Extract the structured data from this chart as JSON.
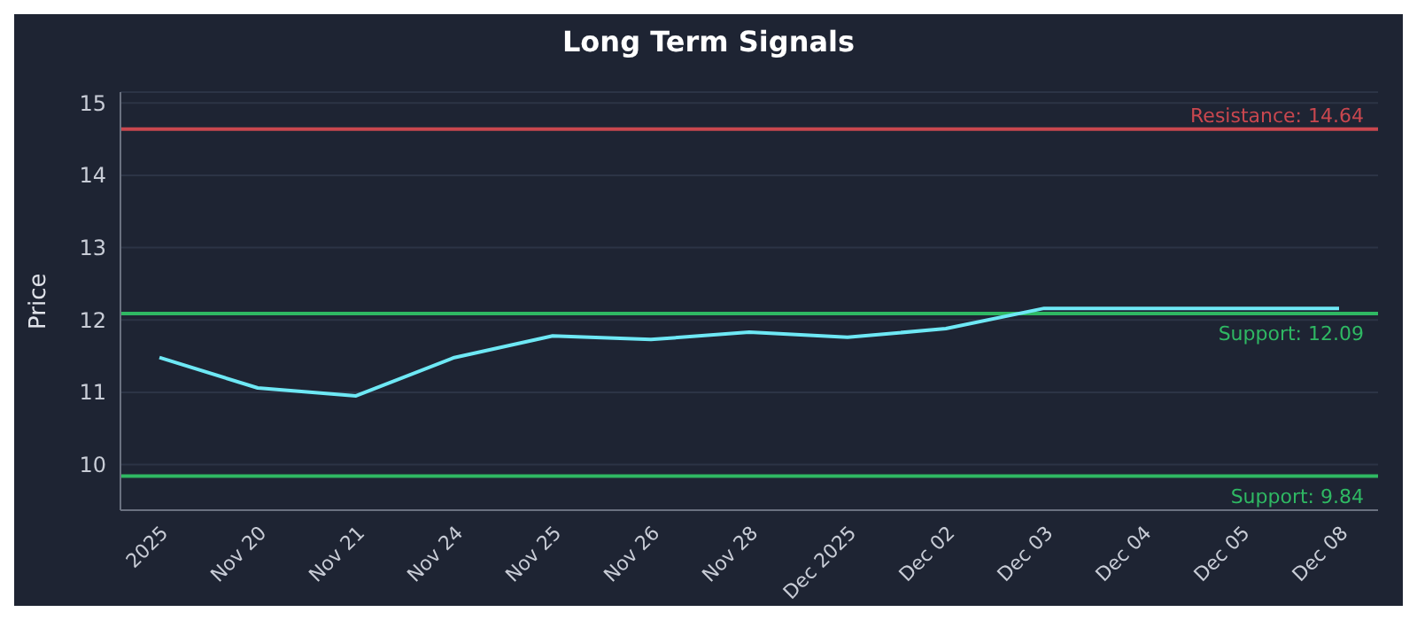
{
  "chart_data": {
    "type": "line",
    "title": "Long Term Signals",
    "ylabel": "Price",
    "categories": [
      "2025",
      "Nov 20",
      "Nov 21",
      "Nov 24",
      "Nov 25",
      "Nov 26",
      "Nov 28",
      "Dec 2025",
      "Dec 02",
      "Dec 03",
      "Dec 04",
      "Dec 05",
      "Dec 08"
    ],
    "series": [
      {
        "color": "#6ee8f5",
        "values": [
          11.48,
          11.06,
          10.95,
          11.48,
          11.78,
          11.73,
          11.83,
          11.76,
          11.88,
          12.16,
          12.16,
          12.16,
          12.16
        ]
      }
    ],
    "ylim": [
      9.37,
      15.15
    ],
    "yticks": [
      10,
      11,
      12,
      13,
      14,
      15
    ],
    "grid": "y",
    "legend": false,
    "marker": "none",
    "line_style": "solid",
    "ref_lines": [
      {
        "axis": "y",
        "value": 14.64,
        "label": "Resistance: 14.64",
        "color": "#c9474f"
      },
      {
        "axis": "y",
        "value": 12.09,
        "label": "Support: 12.09",
        "color": "#2fb863"
      },
      {
        "axis": "y",
        "value": 9.84,
        "label": "Support: 9.84",
        "color": "#2fb863"
      }
    ]
  }
}
